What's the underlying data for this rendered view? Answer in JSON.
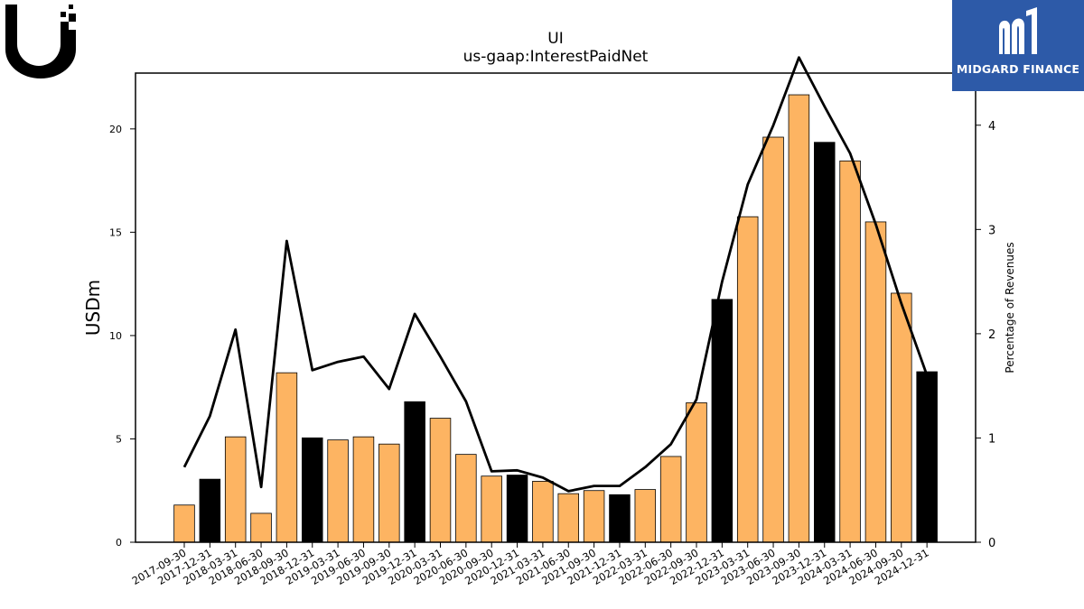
{
  "company_logo": {
    "name": "ui-logo"
  },
  "badge": {
    "text": "MIDGARD FINANCE",
    "bg_color": "#2d5aa8",
    "icon": "midgard-m-logo"
  },
  "chart_data": {
    "type": "bar",
    "title": "UI",
    "subtitle": "us-gaap:InterestPaidNet",
    "ylabel": "USDm",
    "y2label": "Percentage of Revenues",
    "ylim": [
      0,
      22.7
    ],
    "y2lim": [
      0,
      4.5
    ],
    "yticks": [
      0,
      5,
      10,
      15,
      20
    ],
    "y2ticks": [
      0,
      1,
      2,
      3,
      4
    ],
    "grid": false,
    "colors": {
      "bar_default": "#fdb462",
      "bar_highlight": "#000000",
      "line": "#000000"
    },
    "categories": [
      "2017-09-30",
      "2017-12-31",
      "2018-03-31",
      "2018-06-30",
      "2018-09-30",
      "2018-12-31",
      "2019-03-31",
      "2019-06-30",
      "2019-09-30",
      "2019-12-31",
      "2020-03-31",
      "2020-06-30",
      "2020-09-30",
      "2020-12-31",
      "2021-03-31",
      "2021-06-30",
      "2021-09-30",
      "2021-12-31",
      "2022-03-31",
      "2022-06-30",
      "2022-09-30",
      "2022-12-31",
      "2023-03-31",
      "2023-06-30",
      "2023-09-30",
      "2023-12-31",
      "2024-03-31",
      "2024-06-30",
      "2024-09-30",
      "2024-12-31"
    ],
    "series": [
      {
        "type": "bar",
        "values": [
          1.8,
          3.05,
          5.1,
          1.4,
          8.2,
          5.05,
          4.95,
          5.1,
          4.75,
          6.8,
          6.0,
          4.25,
          3.2,
          3.25,
          2.95,
          2.35,
          2.5,
          2.3,
          2.55,
          4.15,
          6.75,
          11.75,
          15.75,
          19.6,
          21.65,
          19.35,
          18.45,
          15.5,
          12.05,
          8.25
        ],
        "highlight": [
          false,
          true,
          false,
          false,
          false,
          true,
          false,
          false,
          false,
          true,
          false,
          false,
          false,
          true,
          false,
          false,
          false,
          true,
          false,
          false,
          false,
          true,
          false,
          false,
          false,
          true,
          false,
          false,
          false,
          true
        ]
      },
      {
        "type": "line",
        "axis": "right",
        "values": [
          0.72,
          1.21,
          2.04,
          0.53,
          2.89,
          1.65,
          1.73,
          1.78,
          1.47,
          2.19,
          1.78,
          1.35,
          0.68,
          0.69,
          0.62,
          0.49,
          0.54,
          0.54,
          0.72,
          0.94,
          1.37,
          2.5,
          3.43,
          4.0,
          4.65,
          4.18,
          3.73,
          3.05,
          2.29,
          1.6
        ]
      }
    ]
  }
}
